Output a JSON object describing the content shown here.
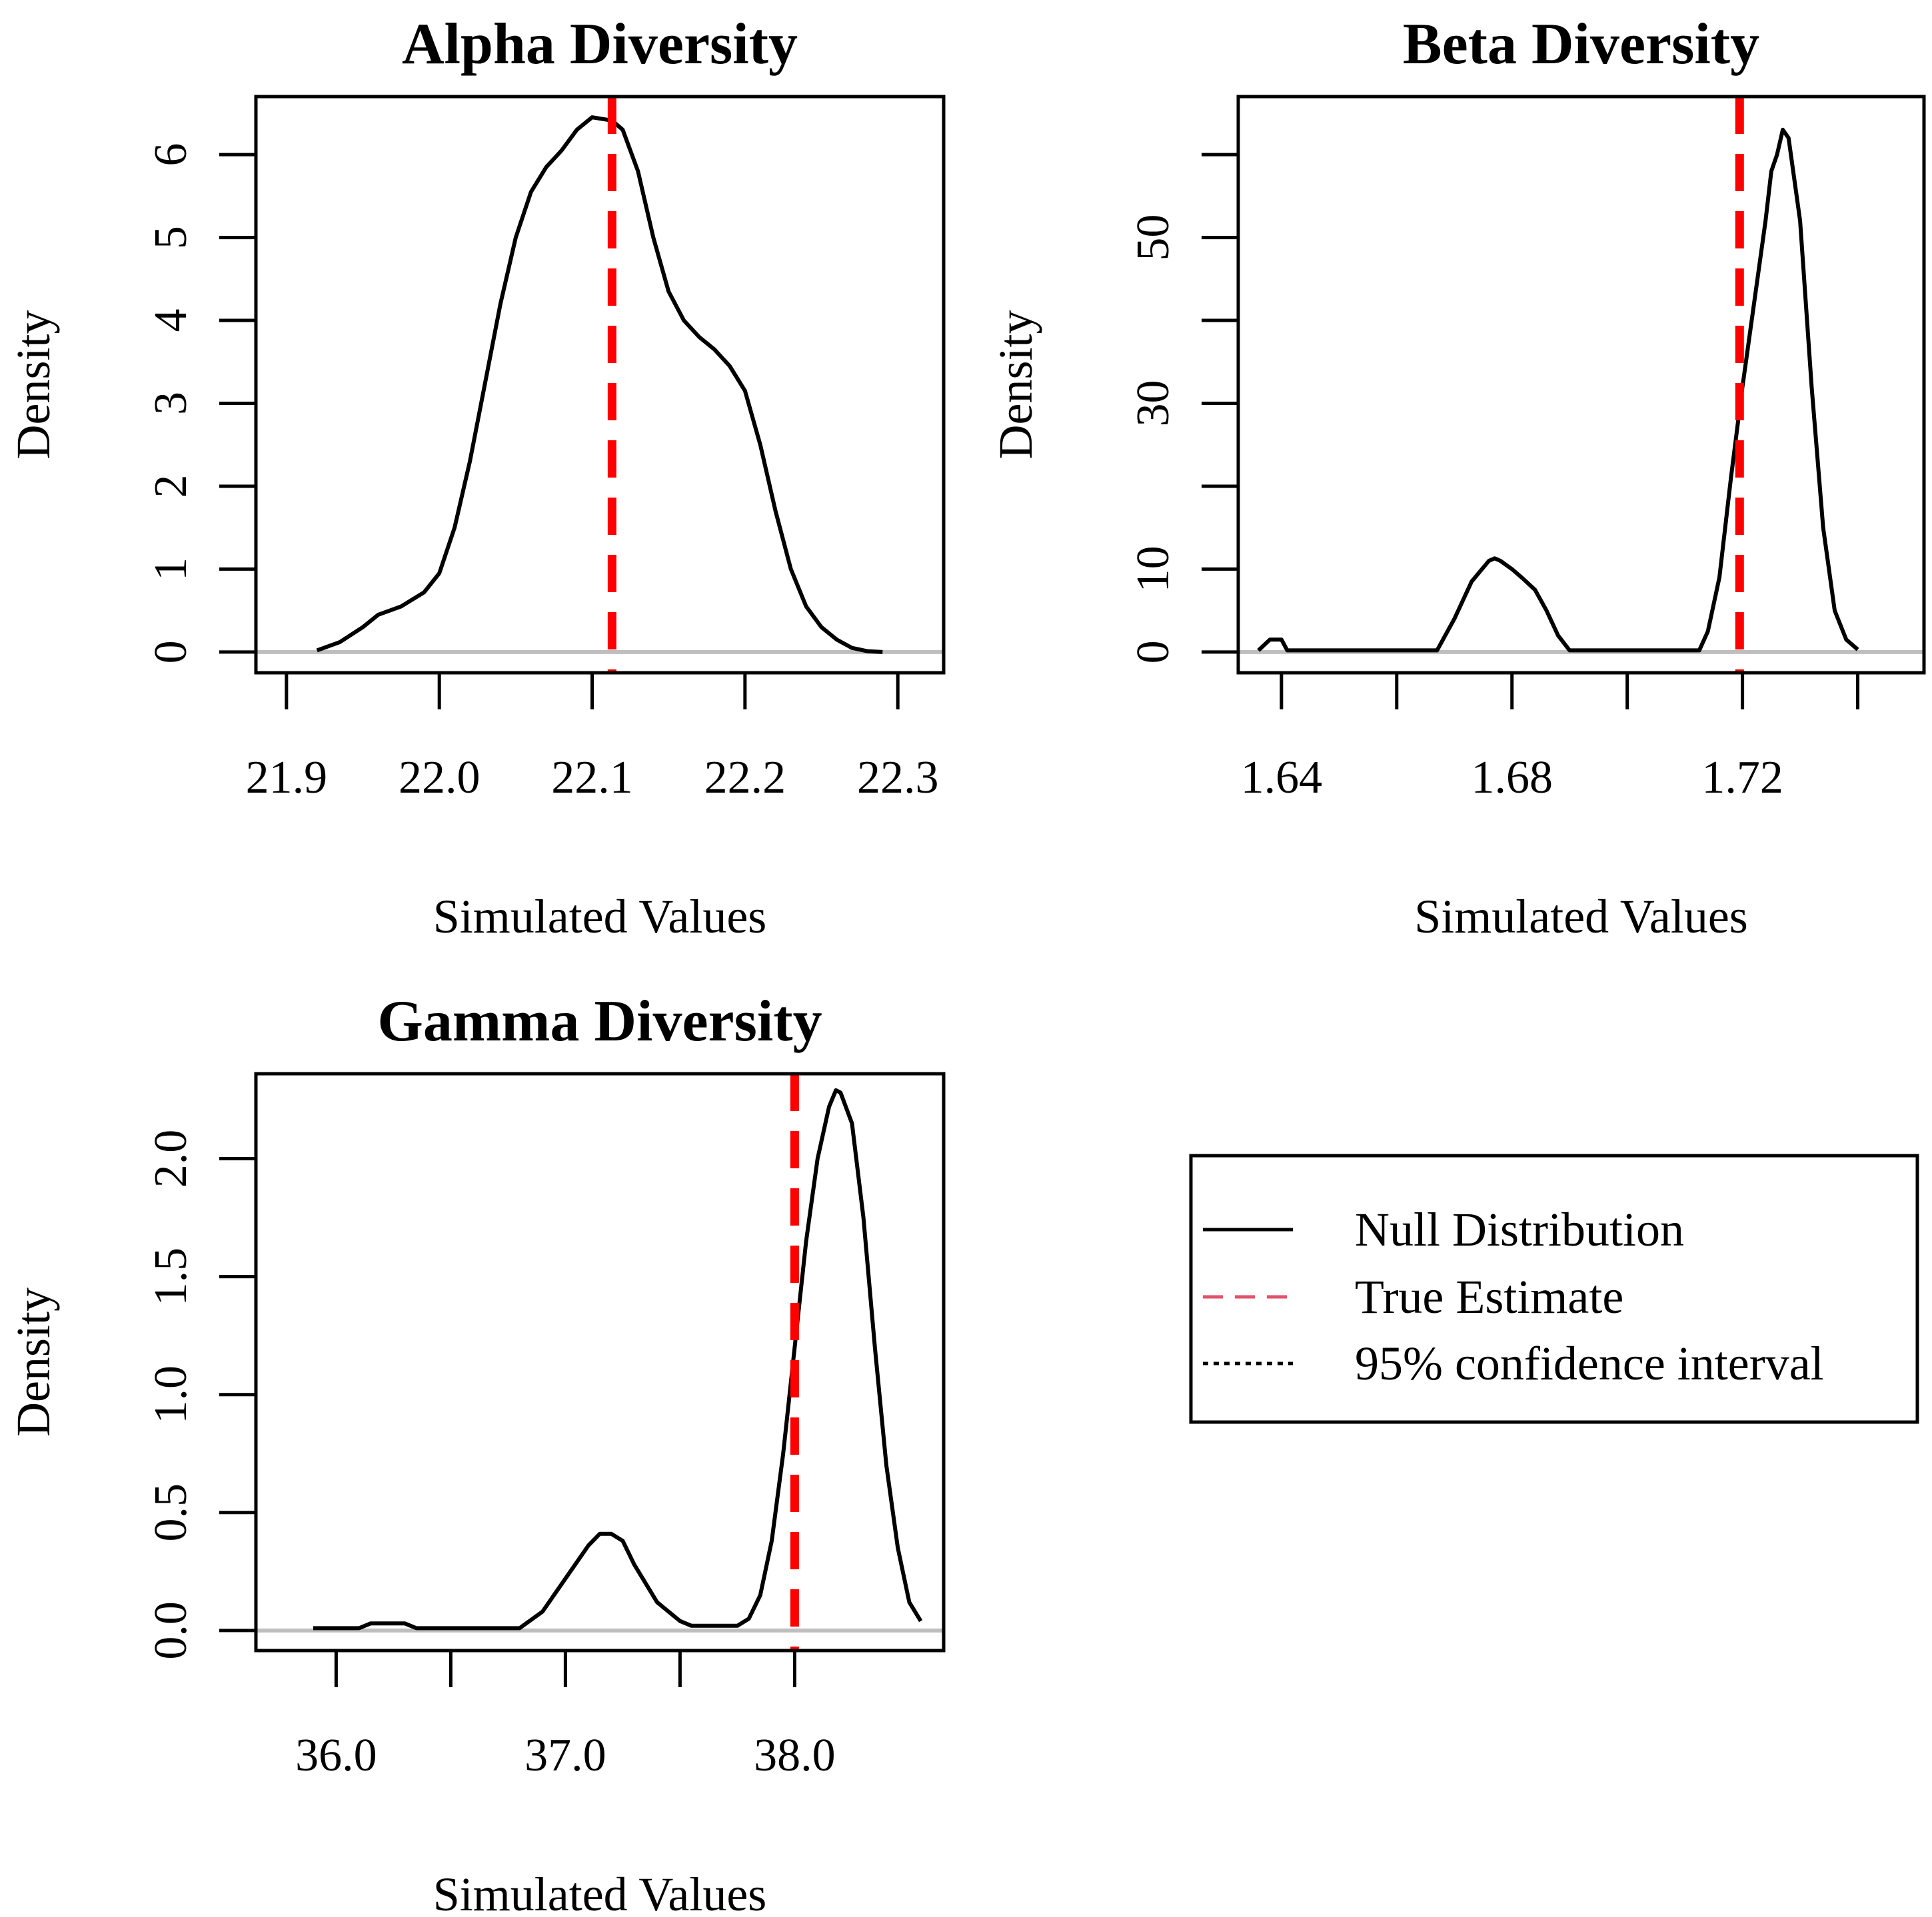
{
  "chart_data": [
    {
      "type": "line",
      "title": "Alpha Diversity",
      "xlabel": "Simulated Values",
      "ylabel": "Density",
      "xlim": [
        21.88,
        22.33
      ],
      "ylim": [
        -0.25,
        6.7
      ],
      "xticks": [
        21.9,
        22.0,
        22.1,
        22.2,
        22.3
      ],
      "xtick_labels": [
        "21.9",
        "22.0",
        "22.1",
        "22.2",
        "22.3"
      ],
      "yticks": [
        0,
        1,
        2,
        3,
        4,
        5,
        6
      ],
      "ytick_labels": [
        "0",
        "1",
        "2",
        "3",
        "4",
        "5",
        "6"
      ],
      "baseline": 0,
      "true_estimate": 22.113,
      "series": [
        {
          "name": "Null Distribution",
          "x": [
            21.92,
            21.935,
            21.95,
            21.96,
            21.975,
            21.99,
            22.0,
            22.01,
            22.02,
            22.03,
            22.04,
            22.05,
            22.06,
            22.07,
            22.08,
            22.09,
            22.1,
            22.11,
            22.115,
            22.12,
            22.13,
            22.14,
            22.15,
            22.16,
            22.17,
            22.18,
            22.19,
            22.2,
            22.21,
            22.22,
            22.23,
            22.24,
            22.25,
            22.26,
            22.27,
            22.28,
            22.29
          ],
          "y": [
            0.02,
            0.12,
            0.3,
            0.45,
            0.55,
            0.72,
            0.95,
            1.5,
            2.3,
            3.25,
            4.2,
            5.0,
            5.55,
            5.85,
            6.05,
            6.3,
            6.45,
            6.42,
            6.38,
            6.3,
            5.8,
            5.0,
            4.35,
            4.0,
            3.8,
            3.65,
            3.45,
            3.15,
            2.5,
            1.7,
            1.0,
            0.55,
            0.3,
            0.15,
            0.05,
            0.01,
            0.0
          ]
        }
      ]
    },
    {
      "type": "line",
      "title": "Beta Diversity",
      "xlabel": "Simulated Values",
      "ylabel": "Density",
      "xlim": [
        1.6325,
        1.7515
      ],
      "ylim": [
        -2.5,
        67
      ],
      "xticks": [
        1.64,
        1.66,
        1.68,
        1.7,
        1.72,
        1.74
      ],
      "xtick_labels": [
        "1.64",
        "",
        "1.68",
        "",
        "1.72",
        ""
      ],
      "yticks": [
        0,
        10,
        20,
        30,
        40,
        50,
        60
      ],
      "ytick_labels": [
        "0",
        "10",
        "",
        "30",
        "",
        "50",
        ""
      ],
      "baseline": 0,
      "true_estimate": 1.7195,
      "series": [
        {
          "name": "Null Distribution",
          "x": [
            1.636,
            1.638,
            1.64,
            1.641,
            1.667,
            1.67,
            1.673,
            1.676,
            1.677,
            1.678,
            1.68,
            1.682,
            1.684,
            1.686,
            1.688,
            1.69,
            1.7125,
            1.714,
            1.716,
            1.718,
            1.72,
            1.722,
            1.724,
            1.725,
            1.726,
            1.727,
            1.728,
            1.73,
            1.732,
            1.734,
            1.736,
            1.738,
            1.74
          ],
          "y": [
            0.2,
            1.5,
            1.5,
            0.2,
            0.2,
            4.0,
            8.5,
            11.0,
            11.3,
            11.0,
            10.0,
            8.8,
            7.5,
            5.0,
            2.0,
            0.2,
            0.2,
            2.5,
            9.0,
            21.0,
            32.0,
            42.0,
            52.0,
            58.0,
            60.0,
            63.0,
            62.0,
            52.0,
            32.0,
            15.0,
            5.0,
            1.5,
            0.3
          ]
        }
      ]
    },
    {
      "type": "line",
      "title": "Gamma Diversity",
      "xlabel": "Simulated Values",
      "ylabel": "Density",
      "xlim": [
        35.65,
        38.65
      ],
      "ylim": [
        -0.085,
        2.36
      ],
      "xticks": [
        36.0,
        36.5,
        37.0,
        37.5,
        38.0
      ],
      "xtick_labels": [
        "36.0",
        "",
        "37.0",
        "",
        "38.0"
      ],
      "yticks": [
        0.0,
        0.5,
        1.0,
        1.5,
        2.0
      ],
      "ytick_labels": [
        "0.0",
        "0.5",
        "1.0",
        "1.5",
        "2.0"
      ],
      "baseline": 0,
      "true_estimate": 38.0,
      "series": [
        {
          "name": "Null Distribution",
          "x": [
            35.9,
            36.1,
            36.15,
            36.3,
            36.35,
            36.55,
            36.8,
            36.9,
            37.0,
            37.1,
            37.15,
            37.2,
            37.25,
            37.3,
            37.4,
            37.5,
            37.55,
            37.75,
            37.8,
            37.85,
            37.9,
            37.95,
            38.0,
            38.05,
            38.1,
            38.15,
            38.18,
            38.2,
            38.25,
            38.3,
            38.35,
            38.4,
            38.45,
            38.5,
            38.55
          ],
          "y": [
            0.01,
            0.01,
            0.03,
            0.03,
            0.01,
            0.01,
            0.01,
            0.08,
            0.22,
            0.36,
            0.41,
            0.41,
            0.38,
            0.28,
            0.12,
            0.04,
            0.02,
            0.02,
            0.05,
            0.15,
            0.38,
            0.75,
            1.2,
            1.65,
            2.0,
            2.22,
            2.29,
            2.28,
            2.15,
            1.75,
            1.2,
            0.7,
            0.35,
            0.12,
            0.04
          ]
        }
      ]
    }
  ],
  "legend": {
    "items": [
      {
        "label": "Null Distribution",
        "style": "solid",
        "color": "#000000"
      },
      {
        "label": "True Estimate",
        "style": "dashed",
        "color": "#df536b"
      },
      {
        "label": "95% confidence interval",
        "style": "dotted",
        "color": "#000000"
      }
    ]
  },
  "colors": {
    "density_line": "#000000",
    "true_estimate_line": "#ff0000",
    "baseline": "#bebebe"
  }
}
